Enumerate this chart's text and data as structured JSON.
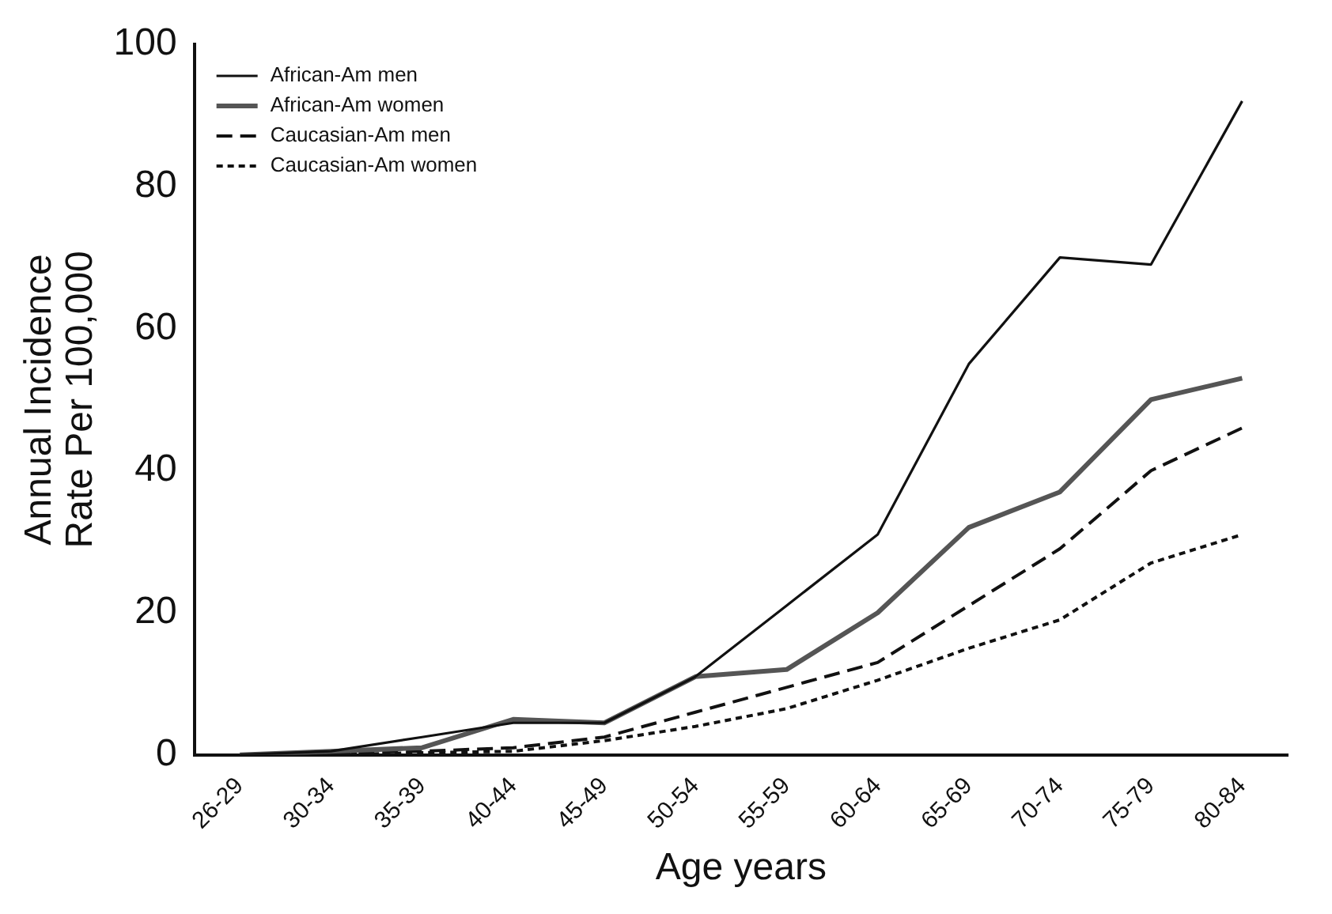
{
  "chart_data": {
    "type": "line",
    "xlabel": "Age years",
    "ylabel": "Annual Incidence\nRate Per 100,000",
    "categories": [
      "26-29",
      "30-34",
      "35-39",
      "40-44",
      "45-49",
      "50-54",
      "55-59",
      "60-64",
      "65-69",
      "70-74",
      "75-79",
      "80-84"
    ],
    "series": [
      {
        "name": "African-Am men",
        "color": "#111111",
        "line_style": "solid",
        "values": [
          0,
          0.5,
          2.5,
          4.5,
          4.5,
          11,
          21,
          31,
          55,
          70,
          69,
          92
        ]
      },
      {
        "name": "African-Am women",
        "color": "#555555",
        "line_style": "solid",
        "values": [
          0,
          0.5,
          1,
          5,
          4.5,
          11,
          12,
          20,
          32,
          37,
          50,
          53
        ]
      },
      {
        "name": "Caucasian-Am men",
        "color": "#111111",
        "line_style": "dashed",
        "values": [
          0,
          0.3,
          0.5,
          1,
          2.5,
          6,
          9.5,
          13,
          21,
          29,
          40,
          46
        ]
      },
      {
        "name": "Caucasian-Am women",
        "color": "#111111",
        "line_style": "dotted",
        "values": [
          0,
          0,
          0.3,
          0.5,
          2,
          4,
          6.5,
          10.5,
          15,
          19,
          27,
          31
        ]
      }
    ],
    "ylim": [
      0,
      100
    ],
    "yticks": [
      0,
      20,
      40,
      60,
      80,
      100
    ],
    "grid": false,
    "legend": "top left",
    "marker": "none"
  }
}
